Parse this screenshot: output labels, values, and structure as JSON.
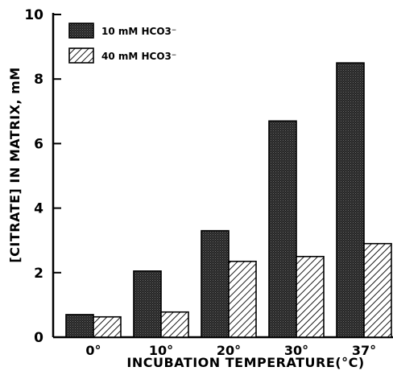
{
  "chart_data": {
    "type": "bar",
    "title": "",
    "xlabel": "INCUBATION TEMPERATURE(°C)",
    "ylabel": "[CITRATE] IN MATRIX, mM",
    "categories": [
      "0°",
      "10°",
      "20°",
      "30°",
      "37°"
    ],
    "series": [
      {
        "name": "10 mM HCO3⁻",
        "values": [
          0.7,
          2.05,
          3.3,
          6.7,
          8.5
        ],
        "fill": "dark-stipple"
      },
      {
        "name": "40 mM HCO3⁻",
        "values": [
          0.63,
          0.78,
          2.35,
          2.5,
          2.9
        ],
        "fill": "diagonal-hatch"
      }
    ],
    "ylim": [
      0,
      10
    ],
    "yticks": [
      0,
      2,
      4,
      6,
      8,
      10
    ],
    "grid": false,
    "legend_position": "top-left",
    "colors": {
      "ink": "#000000",
      "dark_fill": "#2a2a2a",
      "background": "#ffffff"
    }
  }
}
